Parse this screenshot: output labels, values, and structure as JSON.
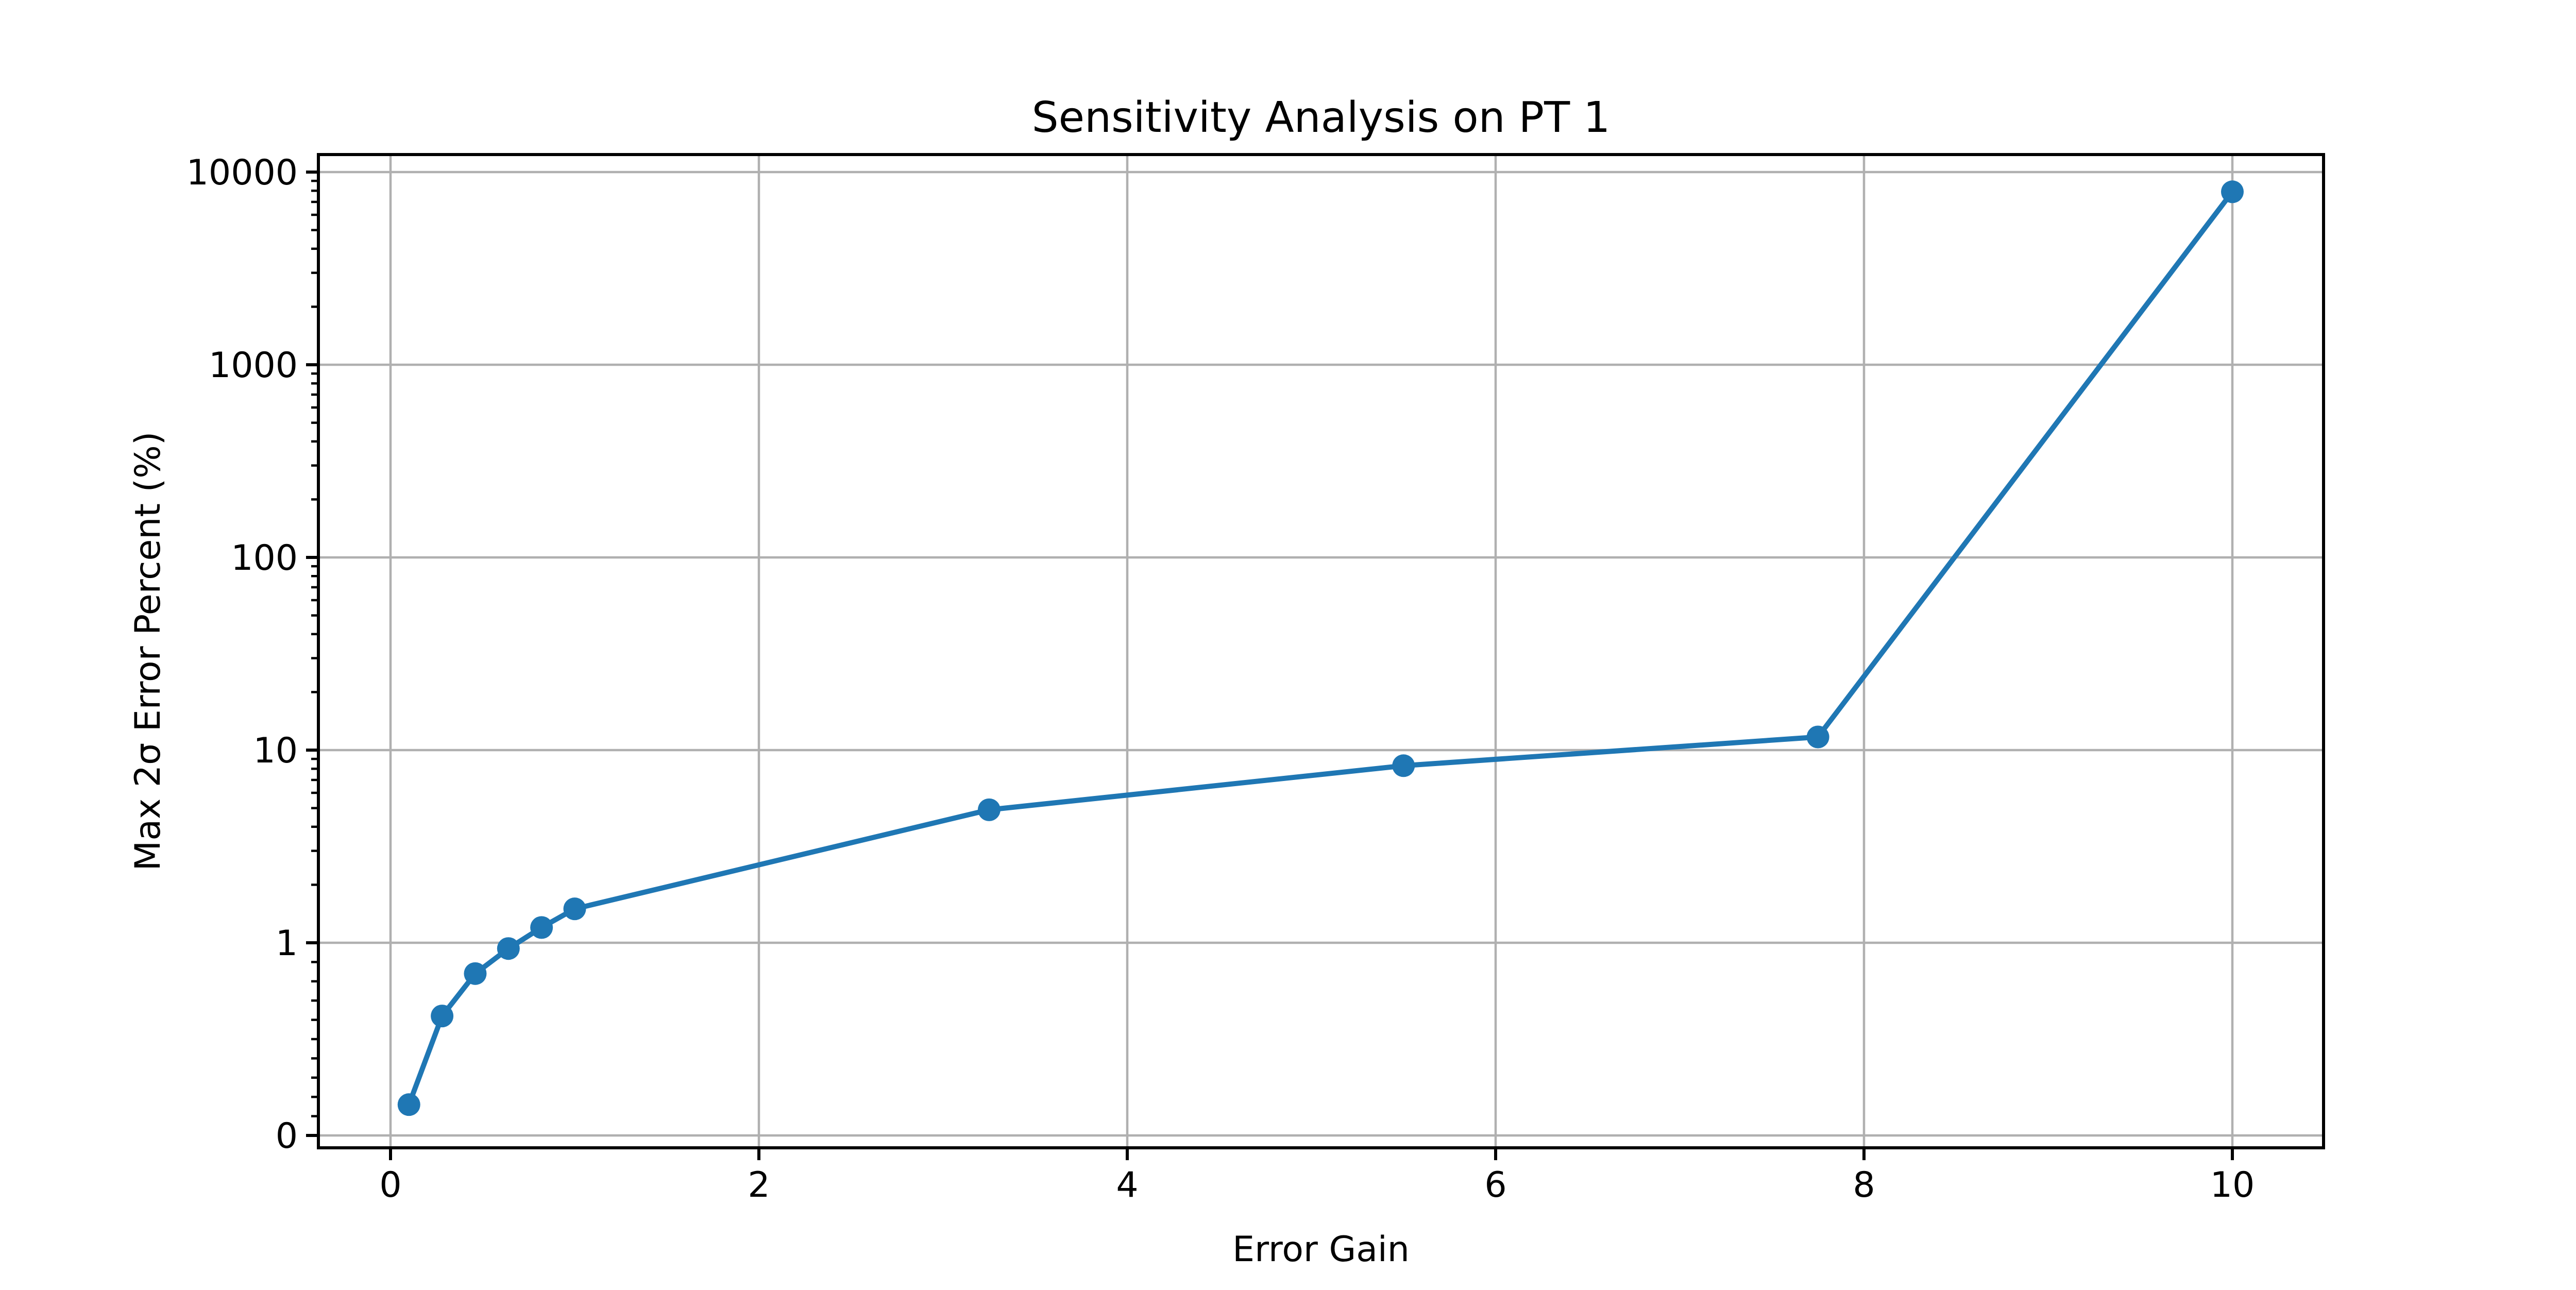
{
  "figure": {
    "background": "#ffffff",
    "text_color": "#000000"
  },
  "chart_data": {
    "type": "line",
    "title": "Sensitivity Analysis on PT 1",
    "xlabel": "Error Gain",
    "ylabel": "Max 2σ Error Percent (%)",
    "xscale": "linear",
    "yscale": "symlog",
    "linthresh": 1,
    "grid": true,
    "legend": false,
    "xlim": [
      -0.4,
      10.5
    ],
    "ylim": [
      -0.07,
      12800
    ],
    "x_ticks": [
      0,
      2,
      4,
      6,
      8,
      10
    ],
    "x_tick_labels": [
      "0",
      "2",
      "4",
      "6",
      "8",
      "10"
    ],
    "y_ticks": [
      0,
      1,
      10,
      100,
      1000,
      10000
    ],
    "y_tick_labels": [
      "0",
      "1",
      "10",
      "100",
      "1000",
      "10000"
    ],
    "y_minor_ticks_linear": [
      0.1,
      0.2,
      0.3,
      0.4,
      0.5,
      0.6,
      0.7,
      0.8,
      0.9
    ],
    "y_minor_decades": [
      1,
      10,
      100,
      1000
    ],
    "grid_color": "#b0b0b0",
    "spine_color": "#000000",
    "series": [
      {
        "name": "max-2sigma-error-percent",
        "color": "#1f77b4",
        "marker": "circle",
        "x": [
          0.1,
          0.28,
          0.46,
          0.64,
          0.82,
          1.0,
          3.25,
          5.5,
          7.75,
          10.0
        ],
        "y": [
          0.16,
          0.62,
          0.84,
          0.97,
          1.2,
          1.5,
          4.9,
          8.3,
          11.7,
          7900
        ]
      }
    ]
  }
}
